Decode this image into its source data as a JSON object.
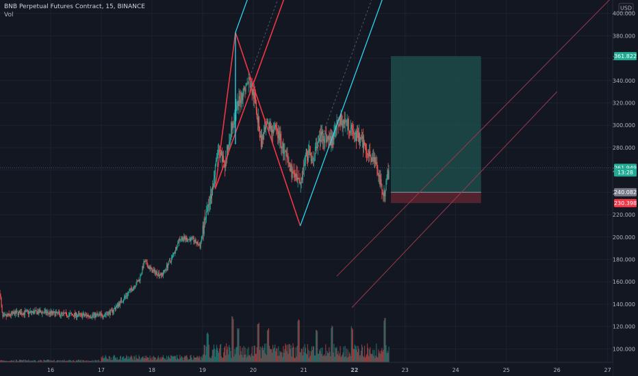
{
  "legend": {
    "title": "BNB Perpetual Futures Contract, 15, BINANCE",
    "volume_label": "Vol"
  },
  "price_axis": {
    "currency": "USD",
    "tick_labels": [
      "400.000",
      "380.000",
      "360.000",
      "340.000",
      "320.000",
      "300.000",
      "280.000",
      "260.000",
      "240.000",
      "220.000",
      "200.000",
      "180.000",
      "160.000",
      "140.000",
      "120.000",
      "100.000"
    ],
    "ticks": [
      400,
      380,
      360,
      340,
      320,
      300,
      280,
      260,
      240,
      220,
      200,
      180,
      160,
      140,
      120,
      100
    ]
  },
  "time_axis": {
    "labels": [
      "16",
      "17",
      "18",
      "19",
      "20",
      "21",
      "22",
      "23",
      "24",
      "25",
      "26",
      "27"
    ],
    "ticks": [
      16,
      17,
      18,
      19,
      20,
      21,
      22,
      23,
      24,
      25,
      26,
      27
    ],
    "bold_label": "22"
  },
  "price_tags": [
    {
      "name": "target",
      "label": "361.822",
      "value": 361.822,
      "color": "#22ab94"
    },
    {
      "name": "current-price",
      "label": "261.949",
      "value": 261.949,
      "color": "#22ab94"
    },
    {
      "name": "countdown",
      "label": "13:28",
      "value": 257.8,
      "color": "#22ab94"
    },
    {
      "name": "entry",
      "label": "240.082",
      "value": 240.082,
      "color": "#787b86"
    },
    {
      "name": "stop",
      "label": "230.398",
      "value": 230.398,
      "color": "#f23645"
    }
  ],
  "colors": {
    "background": "#131722",
    "up": "#26a69a",
    "down": "#ef5350",
    "pitchfork_red": "#f23645",
    "channel_blue": "#2ad8f0",
    "fan_red": "#9a3a4a",
    "profit_zone": "#1e4b49",
    "loss_zone": "#5a2530"
  },
  "chart_data": {
    "type": "candlestick",
    "x_range": [
      15.0,
      27.1
    ],
    "y_range": [
      88,
      412
    ],
    "control_points": [
      [
        15.0,
        150
      ],
      [
        15.05,
        128
      ],
      [
        15.3,
        132
      ],
      [
        15.8,
        133
      ],
      [
        16.2,
        131
      ],
      [
        16.6,
        130
      ],
      [
        17.0,
        130
      ],
      [
        17.2,
        133
      ],
      [
        17.5,
        148
      ],
      [
        17.75,
        162
      ],
      [
        17.85,
        178
      ],
      [
        18.0,
        170
      ],
      [
        18.2,
        166
      ],
      [
        18.4,
        182
      ],
      [
        18.55,
        199
      ],
      [
        18.8,
        198
      ],
      [
        18.95,
        192
      ],
      [
        19.05,
        215
      ],
      [
        19.2,
        245
      ],
      [
        19.3,
        275
      ],
      [
        19.45,
        265
      ],
      [
        19.55,
        295
      ],
      [
        19.75,
        325
      ],
      [
        19.92,
        340
      ],
      [
        20.05,
        320
      ],
      [
        20.15,
        285
      ],
      [
        20.3,
        300
      ],
      [
        20.5,
        292
      ],
      [
        20.65,
        270
      ],
      [
        20.8,
        255
      ],
      [
        20.92,
        245
      ],
      [
        21.05,
        275
      ],
      [
        21.2,
        272
      ],
      [
        21.35,
        292
      ],
      [
        21.55,
        285
      ],
      [
        21.7,
        305
      ],
      [
        21.85,
        302
      ],
      [
        22.0,
        292
      ],
      [
        22.15,
        285
      ],
      [
        22.3,
        275
      ],
      [
        22.45,
        262
      ],
      [
        22.55,
        238
      ],
      [
        22.62,
        244
      ],
      [
        22.68,
        262
      ]
    ],
    "volume_spikes": [
      [
        19.1,
        38
      ],
      [
        19.6,
        62
      ],
      [
        19.7,
        48
      ],
      [
        20.1,
        55
      ],
      [
        20.3,
        45
      ],
      [
        20.9,
        58
      ],
      [
        21.25,
        42
      ],
      [
        21.55,
        50
      ],
      [
        21.95,
        48
      ],
      [
        22.6,
        60
      ]
    ],
    "volume_max": 200,
    "last_price": 261.949
  },
  "drawings": {
    "pitchfork": {
      "points": [
        [
          19.65,
          383
        ],
        [
          19.25,
          243
        ],
        [
          20.93,
          210
        ]
      ]
    },
    "channel": {
      "points": [
        [
          19.65,
          383
        ],
        [
          20.93,
          210
        ]
      ],
      "slope": 125
    },
    "fan_lines": [
      {
        "p1": [
          21.65,
          165
        ],
        "p2": [
          27.1,
          415
        ]
      },
      {
        "p1": [
          21.95,
          137
        ],
        "p2": [
          26.0,
          330
        ]
      }
    ],
    "position": {
      "x_start": 22.72,
      "x_end": 24.5,
      "target": 361.822,
      "entry": 240.082,
      "stop": 230.398
    }
  }
}
